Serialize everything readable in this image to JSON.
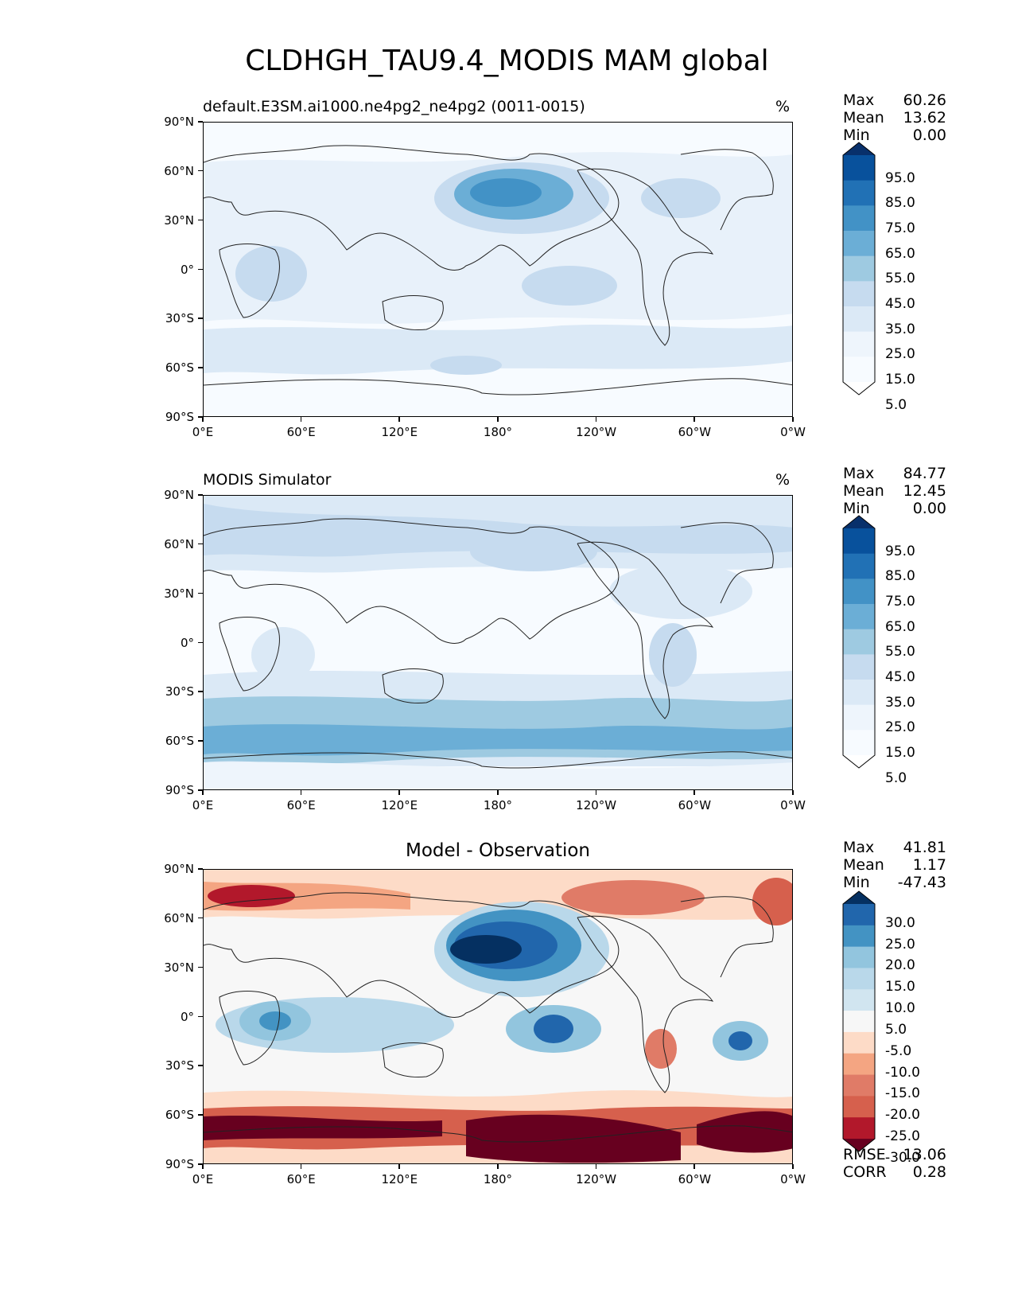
{
  "figure": {
    "title": "CLDHGH_TAU9.4_MODIS MAM global"
  },
  "axes": {
    "lat_ticks": [
      "90°N",
      "60°N",
      "30°N",
      "0°",
      "30°S",
      "60°S",
      "90°S"
    ],
    "lon_ticks": [
      "0°E",
      "60°E",
      "120°E",
      "180°",
      "120°W",
      "60°W",
      "0°W"
    ]
  },
  "panels": [
    {
      "title": "default.E3SM.ai1000.ne4pg2_ne4pg2 (0011-0015)",
      "unit": "%",
      "stats": [
        {
          "label": "Max",
          "value": "60.26"
        },
        {
          "label": "Mean",
          "value": "13.62"
        },
        {
          "label": "Min",
          "value": "0.00"
        }
      ],
      "colorbar": {
        "labels": [
          "95.0",
          "85.0",
          "75.0",
          "65.0",
          "55.0",
          "45.0",
          "35.0",
          "25.0",
          "15.0",
          "5.0"
        ],
        "colors": [
          "#08306b",
          "#08519c",
          "#2171b5",
          "#4292c6",
          "#6baed6",
          "#9ecae1",
          "#c6dbef",
          "#dbe9f6",
          "#eef5fc",
          "#f7fbff",
          "#ffffff"
        ]
      }
    },
    {
      "title": "MODIS Simulator",
      "unit": "%",
      "stats": [
        {
          "label": "Max",
          "value": "84.77"
        },
        {
          "label": "Mean",
          "value": "12.45"
        },
        {
          "label": "Min",
          "value": "0.00"
        }
      ],
      "colorbar": {
        "labels": [
          "95.0",
          "85.0",
          "75.0",
          "65.0",
          "55.0",
          "45.0",
          "35.0",
          "25.0",
          "15.0",
          "5.0"
        ],
        "colors": [
          "#08306b",
          "#08519c",
          "#2171b5",
          "#4292c6",
          "#6baed6",
          "#9ecae1",
          "#c6dbef",
          "#dbe9f6",
          "#eef5fc",
          "#f7fbff",
          "#ffffff"
        ]
      }
    },
    {
      "title": "Model - Observation",
      "unit": "",
      "stats": [
        {
          "label": "Max",
          "value": "41.81"
        },
        {
          "label": "Mean",
          "value": "1.17"
        },
        {
          "label": "Min",
          "value": "-47.43"
        }
      ],
      "extra_stats": [
        {
          "label": "RMSE",
          "value": "13.06"
        },
        {
          "label": "CORR",
          "value": "0.28"
        }
      ],
      "colorbar": {
        "labels": [
          "30.0",
          "25.0",
          "20.0",
          "15.0",
          "10.0",
          "5.0",
          "-5.0",
          "-10.0",
          "-15.0",
          "-20.0",
          "-25.0",
          "-30.0"
        ],
        "colors": [
          "#053061",
          "#2166ac",
          "#4393c3",
          "#92c5de",
          "#b9d8ea",
          "#d1e5f0",
          "#f7f7f7",
          "#fddbc7",
          "#f4a582",
          "#e07b67",
          "#d6604d",
          "#b2182b",
          "#67001f"
        ]
      }
    }
  ]
}
